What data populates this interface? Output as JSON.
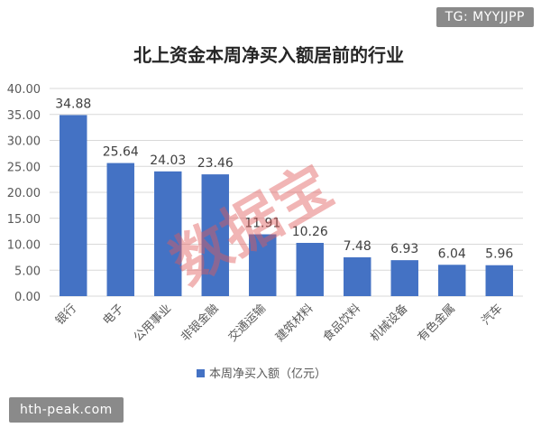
{
  "watermarks": {
    "top_right": "TG: MYYJJPP",
    "bottom_left": "hth-peak.com",
    "stamp": "数据宝"
  },
  "colors": {
    "bar": "#4472c4",
    "grid": "#d9d9d9",
    "axis_text": "#595959",
    "title": "#262626",
    "stamp": "#e05a5a"
  },
  "chart_data": {
    "type": "bar",
    "title": "北上资金本周净买入额居前的行业",
    "categories": [
      "银行",
      "电子",
      "公用事业",
      "非银金融",
      "交通运输",
      "建筑材料",
      "食品饮料",
      "机械设备",
      "有色金属",
      "汽车"
    ],
    "series": [
      {
        "name": "本周净买入额（亿元）",
        "values": [
          34.88,
          25.64,
          24.03,
          23.46,
          11.91,
          10.26,
          7.48,
          6.93,
          6.04,
          5.96
        ]
      }
    ],
    "data_labels": [
      "34.88",
      "25.64",
      "24.03",
      "23.46",
      "11.91",
      "10.26",
      "7.48",
      "6.93",
      "6.04",
      "5.96"
    ],
    "y_ticks": [
      "0.00",
      "5.00",
      "10.00",
      "15.00",
      "20.00",
      "25.00",
      "30.00",
      "35.00",
      "40.00"
    ],
    "ylim": [
      0,
      40
    ],
    "grid": true,
    "legend": "bottom-center"
  }
}
